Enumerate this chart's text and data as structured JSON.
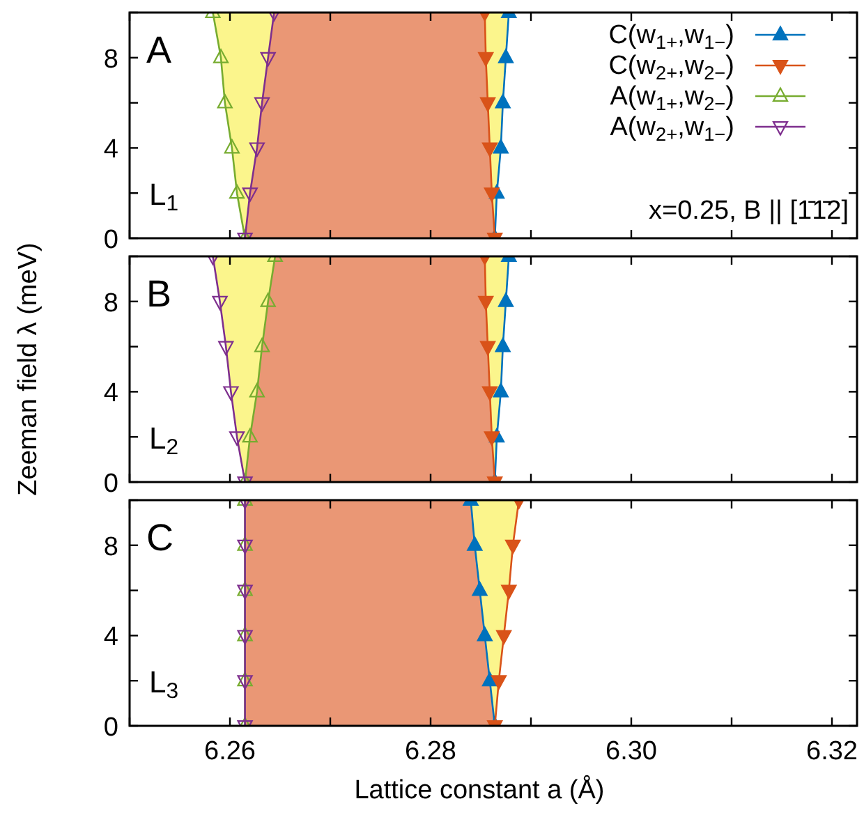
{
  "chart_data": [
    {
      "type": "line",
      "xlim": [
        6.25,
        6.3225
      ],
      "ylim": [
        0,
        10
      ],
      "xticks": [
        {
          "value": 6.25,
          "label": null
        },
        {
          "value": 6.26,
          "label": null
        },
        {
          "value": 6.27,
          "label": null
        },
        {
          "value": 6.28,
          "label": null
        },
        {
          "value": 6.29,
          "label": null
        },
        {
          "value": 6.3,
          "label": null
        },
        {
          "value": 6.31,
          "label": null
        },
        {
          "value": 6.32,
          "label": null
        }
      ],
      "yticks": [
        0,
        {
          "value": 2,
          "label": null
        },
        4,
        {
          "value": 6,
          "label": null
        },
        8,
        {
          "value": 10,
          "label": null
        }
      ],
      "tick_labels": "y",
      "legend": "top right",
      "grid": false,
      "annotations": [
        "A",
        "L$_{1}$",
        "x=0.25, B || [1̄1̄2]"
      ],
      "series": [
        {
          "name": "C(w$_{1+}$,w$_{1−}$)",
          "color": "#0072bd",
          "marker": "triangle",
          "x": [
            6.2864,
            6.2866,
            6.287,
            6.2872,
            6.2875,
            6.2878
          ],
          "values": [
            0,
            2,
            4,
            6,
            8,
            10
          ]
        },
        {
          "name": "C(w$_{2+}$,w$_{2−}$)",
          "color": "#d95319",
          "marker": "triangle-down",
          "x": [
            6.2864,
            6.2861,
            6.2859,
            6.2857,
            6.2855,
            6.2854
          ],
          "values": [
            0,
            2,
            4,
            6,
            8,
            10
          ]
        },
        {
          "name": "A(w$_{1+}$,w$_{2−}$)",
          "color": "#77ac30",
          "marker": "triangle-open",
          "x": [
            6.2615,
            6.2607,
            6.2602,
            6.2595,
            6.2591,
            6.2583
          ],
          "values": [
            0,
            2,
            4,
            6,
            8,
            10
          ]
        },
        {
          "name": "A(w$_{2+}$,w$_{1−}$)",
          "color": "#7e2f8e",
          "marker": "triangle-down-open",
          "x": [
            6.2615,
            6.262,
            6.2627,
            6.2632,
            6.2638,
            6.2644
          ],
          "values": [
            0,
            2,
            4,
            6,
            8,
            10
          ]
        }
      ]
    },
    {
      "type": "line",
      "xlim": [
        6.25,
        6.3225
      ],
      "ylim": [
        0,
        10
      ],
      "xticks": [
        {
          "value": 6.25,
          "label": null
        },
        {
          "value": 6.26,
          "label": null
        },
        {
          "value": 6.27,
          "label": null
        },
        {
          "value": 6.28,
          "label": null
        },
        {
          "value": 6.29,
          "label": null
        },
        {
          "value": 6.3,
          "label": null
        },
        {
          "value": 6.31,
          "label": null
        },
        {
          "value": 6.32,
          "label": null
        }
      ],
      "yticks": [
        0,
        {
          "value": 2,
          "label": null
        },
        4,
        {
          "value": 6,
          "label": null
        },
        8,
        {
          "value": 10,
          "label": null
        }
      ],
      "tick_labels": "y",
      "grid": false,
      "ylabel": "Zeeman field λ (meV)",
      "annotations": [
        "B",
        "L$_{2}$"
      ],
      "series": [
        {
          "color": "#0072bd",
          "marker": "triangle",
          "x": [
            6.2864,
            6.2866,
            6.287,
            6.2872,
            6.2875,
            6.2878
          ],
          "values": [
            0,
            2,
            4,
            6,
            8,
            10
          ]
        },
        {
          "color": "#d95319",
          "marker": "triangle-down",
          "x": [
            6.2864,
            6.2861,
            6.2859,
            6.2857,
            6.2855,
            6.2854
          ],
          "values": [
            0,
            2,
            4,
            6,
            8,
            10
          ]
        },
        {
          "color": "#77ac30",
          "marker": "triangle-open",
          "x": [
            6.2615,
            6.262,
            6.2627,
            6.2632,
            6.2638,
            6.2645
          ],
          "values": [
            0,
            2,
            4,
            6,
            8,
            10
          ]
        },
        {
          "color": "#7e2f8e",
          "marker": "triangle-down-open",
          "x": [
            6.2615,
            6.2607,
            6.2601,
            6.2596,
            6.259,
            6.2583
          ],
          "values": [
            0,
            2,
            4,
            6,
            8,
            10
          ]
        }
      ]
    },
    {
      "type": "line",
      "xlim": [
        6.25,
        6.3225
      ],
      "ylim": [
        0,
        10
      ],
      "xticks": [
        {
          "value": 6.25,
          "label": null
        },
        6.26,
        {
          "value": 6.27,
          "label": null
        },
        6.28,
        {
          "value": 6.29,
          "label": null
        },
        {
          "value": 6.3,
          "label": "6.30"
        },
        {
          "value": 6.31,
          "label": null
        },
        6.32
      ],
      "yticks": [
        0,
        {
          "value": 2,
          "label": null
        },
        4,
        {
          "value": 6,
          "label": null
        },
        8,
        {
          "value": 10,
          "label": null
        }
      ],
      "grid": false,
      "xlabel": "Lattice constant a (Å)",
      "annotations": [
        "C",
        "L$_{3}$"
      ],
      "series": [
        {
          "color": "#0072bd",
          "marker": "triangle",
          "x": [
            6.2864,
            6.2859,
            6.2854,
            6.2849,
            6.2844,
            6.284
          ],
          "values": [
            0,
            2,
            4,
            6,
            8,
            10
          ]
        },
        {
          "color": "#d95319",
          "marker": "triangle-down",
          "x": [
            6.2864,
            6.2868,
            6.2873,
            6.2878,
            6.2882,
            6.2888
          ],
          "values": [
            0,
            2,
            4,
            6,
            8,
            10
          ]
        },
        {
          "color": "#77ac30",
          "marker": "triangle-open",
          "x": [
            6.2615,
            6.2615,
            6.2615,
            6.2615,
            6.2615,
            6.2615
          ],
          "values": [
            0,
            2,
            4,
            6,
            8,
            10
          ]
        },
        {
          "color": "#7e2f8e",
          "marker": "triangle-down-open",
          "x": [
            6.2615,
            6.2615,
            6.2615,
            6.2615,
            6.2615,
            6.2615
          ],
          "values": [
            0,
            2,
            4,
            6,
            8,
            10
          ]
        }
      ]
    }
  ]
}
